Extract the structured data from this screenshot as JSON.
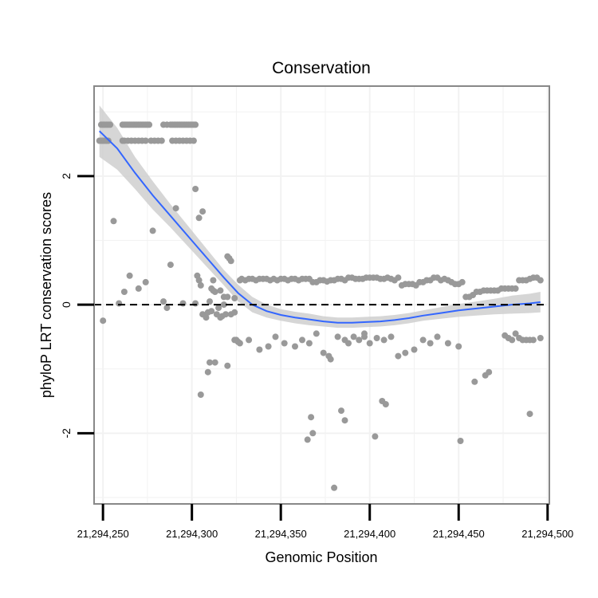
{
  "chart_data": {
    "type": "scatter",
    "title": "Conservation",
    "xlabel": "Genomic Position",
    "ylabel": "phyloP LRT conservation scores",
    "xlim": [
      21294245,
      21294501
    ],
    "ylim": [
      -3.1,
      3.4
    ],
    "x_ticks": [
      21294250,
      21294300,
      21294350,
      21294400,
      21294450,
      21294500
    ],
    "x_tick_labels": [
      "21,294,250",
      "21,294,300",
      "21,294,350",
      "21,294,400",
      "21,294,450",
      "21,294,500"
    ],
    "y_ticks": [
      -2,
      0,
      2
    ],
    "y_tick_labels": [
      "-2",
      "0",
      "2"
    ],
    "grid": true,
    "reference_line": {
      "y": 0,
      "style": "dashed"
    },
    "colors": {
      "points": "#999999",
      "smooth": "#3366ff",
      "band": "#cccccc",
      "grid": "#f2f2f2",
      "border": "#888888"
    },
    "series": [
      {
        "name": "scores",
        "kind": "points",
        "x": [
          21294248,
          21294249,
          21294250,
          21294251,
          21294252,
          21294253,
          21294249,
          21294250,
          21294251,
          21294252,
          21294253,
          21294254,
          21294261,
          21294262,
          21294263,
          21294264,
          21294265,
          21294266,
          21294267,
          21294268,
          21294269,
          21294270,
          21294271,
          21294272,
          21294273,
          21294274,
          21294275,
          21294276,
          21294261,
          21294262,
          21294264,
          21294266,
          21294268,
          21294270,
          21294272,
          21294274,
          21294277,
          21294279,
          21294281,
          21294283,
          21294284,
          21294286,
          21294288,
          21294289,
          21294290,
          21294291,
          21294292,
          21294293,
          21294294,
          21294295,
          21294296,
          21294297,
          21294298,
          21294299,
          21294300,
          21294301,
          21294302,
          21294289,
          21294291,
          21294293,
          21294295,
          21294297,
          21294299,
          21294301,
          21294250,
          21294256,
          21294259,
          21294262,
          21294265,
          21294270,
          21294274,
          21294278,
          21294284,
          21294286,
          21294288,
          21294291,
          21294295,
          21294302,
          21294303,
          21294304,
          21294305,
          21294306,
          21294308,
          21294309,
          21294310,
          21294311,
          21294312,
          21294313,
          21294314,
          21294315,
          21294316,
          21294317,
          21294318,
          21294319,
          21294320,
          21294321,
          21294322,
          21294324,
          21294326,
          21294310,
          21294313,
          21294320,
          21294322,
          21294324,
          21294325,
          21294305,
          21294309,
          21294311,
          21294316,
          21294324,
          21294318,
          21294320,
          21294306,
          21294302,
          21294304,
          21294312,
          21294327,
          21294328,
          21294330,
          21294332,
          21294334,
          21294336,
          21294338,
          21294340,
          21294342,
          21294344,
          21294346,
          21294348,
          21294350,
          21294352,
          21294354,
          21294356,
          21294358,
          21294360,
          21294362,
          21294364,
          21294366,
          21294368,
          21294370,
          21294372,
          21294374,
          21294376,
          21294378,
          21294380,
          21294382,
          21294384,
          21294386,
          21294388,
          21294390,
          21294392,
          21294394,
          21294396,
          21294398,
          21294400,
          21294402,
          21294404,
          21294406,
          21294408,
          21294410,
          21294412,
          21294414,
          21294416,
          21294418,
          21294420,
          21294422,
          21294424,
          21294426,
          21294428,
          21294430,
          21294432,
          21294434,
          21294436,
          21294438,
          21294440,
          21294442,
          21294444,
          21294446,
          21294448,
          21294450,
          21294452,
          21294454,
          21294456,
          21294458,
          21294460,
          21294462,
          21294464,
          21294466,
          21294468,
          21294470,
          21294472,
          21294474,
          21294476,
          21294478,
          21294480,
          21294482,
          21294484,
          21294486,
          21294488,
          21294490,
          21294492,
          21294494,
          21294496,
          21294327,
          21294332,
          21294338,
          21294343,
          21294347,
          21294352,
          21294358,
          21294362,
          21294366,
          21294370,
          21294374,
          21294378,
          21294382,
          21294386,
          21294388,
          21294391,
          21294394,
          21294397,
          21294400,
          21294404,
          21294408,
          21294412,
          21294416,
          21294420,
          21294425,
          21294430,
          21294434,
          21294438,
          21294444,
          21294450,
          21294476,
          21294478,
          21294480,
          21294482,
          21294484,
          21294486,
          21294488,
          21294490,
          21294492,
          21294496,
          21294365,
          21294367,
          21294368,
          21294377,
          21294380,
          21294384,
          21294386,
          21294397,
          21294403,
          21294407,
          21294409,
          21294451,
          21294459,
          21294465,
          21294467,
          21294490
        ],
        "y": [
          2.55,
          2.55,
          2.55,
          2.55,
          2.55,
          2.55,
          2.8,
          2.8,
          2.8,
          2.8,
          2.8,
          2.8,
          2.8,
          2.8,
          2.8,
          2.8,
          2.8,
          2.8,
          2.8,
          2.8,
          2.8,
          2.8,
          2.8,
          2.8,
          2.8,
          2.8,
          2.8,
          2.8,
          2.55,
          2.55,
          2.55,
          2.55,
          2.55,
          2.55,
          2.55,
          2.55,
          2.55,
          2.55,
          2.55,
          2.55,
          2.8,
          2.8,
          2.8,
          2.8,
          2.8,
          2.8,
          2.8,
          2.8,
          2.8,
          2.8,
          2.8,
          2.8,
          2.8,
          2.8,
          2.8,
          2.8,
          2.8,
          2.55,
          2.55,
          2.55,
          2.55,
          2.55,
          2.55,
          2.55,
          -0.25,
          1.3,
          0.02,
          0.2,
          0.45,
          0.25,
          0.35,
          1.15,
          0.05,
          -0.05,
          0.62,
          1.5,
          0.02,
          1.8,
          0.45,
          0.38,
          0.3,
          -0.15,
          -0.2,
          -0.12,
          0.05,
          0.25,
          0.22,
          0.2,
          -0.15,
          -0.05,
          -0.2,
          -0.18,
          0.12,
          -0.15,
          0.75,
          0.72,
          0.68,
          -0.55,
          -0.58,
          -0.9,
          -0.9,
          -0.95,
          -0.15,
          -0.12,
          -0.55,
          -1.4,
          -1.05,
          -0.1,
          0.22,
          0.1,
          0.0,
          0.12,
          1.45,
          0.02,
          1.35,
          0.38,
          0.38,
          0.4,
          0.38,
          0.4,
          0.4,
          0.38,
          0.4,
          0.4,
          0.4,
          0.38,
          0.4,
          0.38,
          0.4,
          0.4,
          0.38,
          0.4,
          0.4,
          0.38,
          0.4,
          0.4,
          0.4,
          0.35,
          0.35,
          0.38,
          0.38,
          0.36,
          0.38,
          0.38,
          0.4,
          0.4,
          0.38,
          0.42,
          0.42,
          0.4,
          0.4,
          0.4,
          0.42,
          0.42,
          0.42,
          0.42,
          0.4,
          0.4,
          0.42,
          0.4,
          0.38,
          0.42,
          0.3,
          0.32,
          0.32,
          0.32,
          0.3,
          0.35,
          0.35,
          0.38,
          0.38,
          0.42,
          0.42,
          0.38,
          0.4,
          0.38,
          0.35,
          0.32,
          0.32,
          0.35,
          0.12,
          0.12,
          0.15,
          0.2,
          0.2,
          0.22,
          0.22,
          0.22,
          0.22,
          0.22,
          0.25,
          0.25,
          0.25,
          0.25,
          0.25,
          0.38,
          0.38,
          0.38,
          0.4,
          0.42,
          0.42,
          0.38,
          -0.6,
          -0.55,
          -0.7,
          -0.65,
          -0.5,
          -0.6,
          -0.65,
          -0.55,
          -0.6,
          -0.45,
          -0.75,
          -0.85,
          -0.5,
          -0.55,
          -0.6,
          -0.5,
          -0.55,
          -0.45,
          -0.6,
          -0.52,
          -0.55,
          -0.5,
          -0.8,
          -0.75,
          -0.7,
          -0.55,
          -0.6,
          -0.5,
          -0.6,
          -0.65,
          -0.48,
          -0.52,
          -0.55,
          -0.45,
          -0.52,
          -0.55,
          -0.55,
          -0.55,
          -0.55,
          -0.52,
          -2.1,
          -1.75,
          -2.0,
          -0.8,
          -2.85,
          -1.65,
          -1.8,
          -0.5,
          -2.05,
          -1.5,
          -1.55,
          -2.12,
          -1.2,
          -1.1,
          -1.05,
          -1.7
        ]
      },
      {
        "name": "loess smooth",
        "kind": "line",
        "x": [
          21294248,
          21294258,
          21294268,
          21294278,
          21294288,
          21294298,
          21294308,
          21294318,
          21294326,
          21294334,
          21294342,
          21294350,
          21294358,
          21294366,
          21294374,
          21294382,
          21294390,
          21294398,
          21294406,
          21294414,
          21294422,
          21294430,
          21294440,
          21294450,
          21294460,
          21294470,
          21294480,
          21294490,
          21294496
        ],
        "y": [
          2.7,
          2.43,
          2.05,
          1.7,
          1.38,
          1.06,
          0.74,
          0.42,
          0.18,
          0.0,
          -0.1,
          -0.16,
          -0.2,
          -0.23,
          -0.26,
          -0.28,
          -0.28,
          -0.27,
          -0.26,
          -0.24,
          -0.21,
          -0.17,
          -0.13,
          -0.09,
          -0.06,
          -0.03,
          0.0,
          0.02,
          0.04
        ],
        "lower": [
          2.3,
          2.1,
          1.8,
          1.48,
          1.2,
          0.9,
          0.6,
          0.3,
          0.05,
          -0.12,
          -0.2,
          -0.25,
          -0.29,
          -0.32,
          -0.34,
          -0.36,
          -0.36,
          -0.35,
          -0.34,
          -0.32,
          -0.29,
          -0.25,
          -0.22,
          -0.19,
          -0.17,
          -0.15,
          -0.14,
          -0.13,
          -0.12
        ],
        "upper": [
          3.1,
          2.75,
          2.3,
          1.92,
          1.56,
          1.22,
          0.88,
          0.54,
          0.31,
          0.12,
          0.0,
          -0.07,
          -0.11,
          -0.14,
          -0.18,
          -0.2,
          -0.2,
          -0.19,
          -0.18,
          -0.16,
          -0.13,
          -0.09,
          -0.04,
          0.01,
          0.05,
          0.09,
          0.14,
          0.17,
          0.2
        ]
      }
    ]
  }
}
